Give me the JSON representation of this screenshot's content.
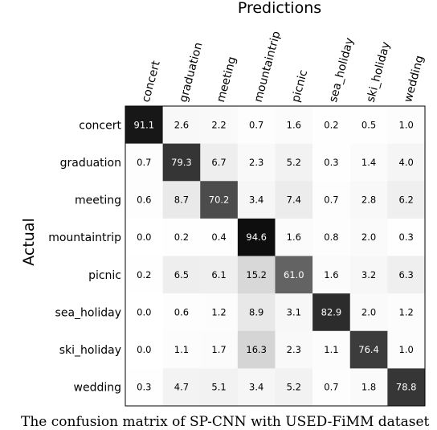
{
  "chart_data": {
    "type": "heatmap",
    "title": "Predictions",
    "xlabel": "",
    "ylabel": "Actual",
    "col_labels": [
      "concert",
      "graduation",
      "meeting",
      "mountaintrip",
      "picnic",
      "sea_holiday",
      "ski_holiday",
      "wedding"
    ],
    "row_labels": [
      "concert",
      "graduation",
      "meeting",
      "mountaintrip",
      "picnic",
      "sea_holiday",
      "ski_holiday",
      "wedding"
    ],
    "values": [
      [
        91.1,
        2.6,
        2.2,
        0.7,
        1.6,
        0.2,
        0.5,
        1.0
      ],
      [
        0.7,
        79.3,
        6.7,
        2.3,
        5.2,
        0.3,
        1.4,
        4.0
      ],
      [
        0.6,
        8.7,
        70.2,
        3.4,
        7.4,
        0.7,
        2.8,
        6.2
      ],
      [
        0.0,
        0.2,
        0.4,
        94.6,
        1.6,
        0.8,
        2.0,
        0.3
      ],
      [
        0.2,
        6.5,
        6.1,
        15.2,
        61.0,
        1.6,
        3.2,
        6.3
      ],
      [
        0.0,
        0.6,
        1.2,
        8.9,
        3.1,
        82.9,
        2.0,
        1.2
      ],
      [
        0.0,
        1.1,
        1.7,
        16.3,
        2.3,
        1.1,
        76.4,
        1.0
      ],
      [
        0.3,
        4.7,
        5.1,
        3.4,
        5.2,
        0.7,
        1.8,
        78.8
      ]
    ],
    "color_scale": "greys",
    "value_range": [
      0,
      100
    ]
  },
  "caption": "The confusion matrix of SP-CNN with USED-FiMM dataset"
}
